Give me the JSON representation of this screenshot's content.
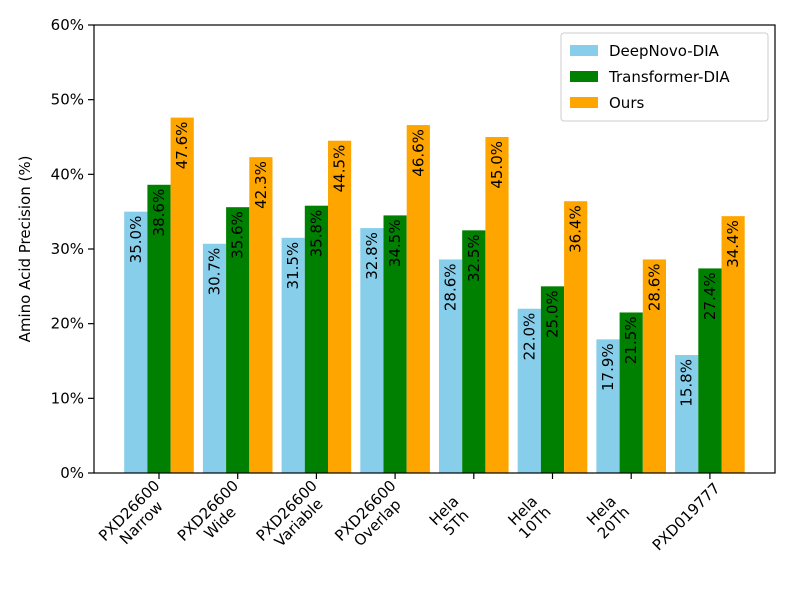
{
  "chart_data": {
    "type": "bar",
    "title": "",
    "xlabel": "",
    "ylabel": "Amino Acid Precision (%)",
    "ylim": [
      0,
      60
    ],
    "yticks": [
      "0%",
      "10%",
      "20%",
      "30%",
      "40%",
      "50%",
      "60%"
    ],
    "categories": [
      [
        "PXD26600",
        "Narrow"
      ],
      [
        "PXD26600",
        "Wide"
      ],
      [
        "PXD26600",
        "Variable"
      ],
      [
        "PXD26600",
        "Overlap"
      ],
      [
        "Hela",
        "5Th"
      ],
      [
        "Hela",
        "10Th"
      ],
      [
        "Hela",
        "20Th"
      ],
      [
        "PXD019777"
      ]
    ],
    "series": [
      {
        "name": "DeepNovo-DIA",
        "color": "#87ceeb",
        "values": [
          35.0,
          30.7,
          31.5,
          32.8,
          28.6,
          22.0,
          17.9,
          15.8
        ],
        "labels": [
          "35.0%",
          "30.7%",
          "31.5%",
          "32.8%",
          "28.6%",
          "22.0%",
          "17.9%",
          "15.8%"
        ]
      },
      {
        "name": "Transformer-DIA",
        "color": "#008000",
        "values": [
          38.6,
          35.6,
          35.8,
          34.5,
          32.5,
          25.0,
          21.5,
          27.4
        ],
        "labels": [
          "38.6%",
          "35.6%",
          "35.8%",
          "34.5%",
          "32.5%",
          "25.0%",
          "21.5%",
          "27.4%"
        ]
      },
      {
        "name": "Ours",
        "color": "#ffa500",
        "values": [
          47.6,
          42.3,
          44.5,
          46.6,
          45.0,
          36.4,
          28.6,
          34.4
        ],
        "labels": [
          "47.6%",
          "42.3%",
          "44.5%",
          "46.6%",
          "45.0%",
          "36.4%",
          "28.6%",
          "34.4%"
        ]
      }
    ],
    "legend_position": "top-right",
    "grid": false
  }
}
